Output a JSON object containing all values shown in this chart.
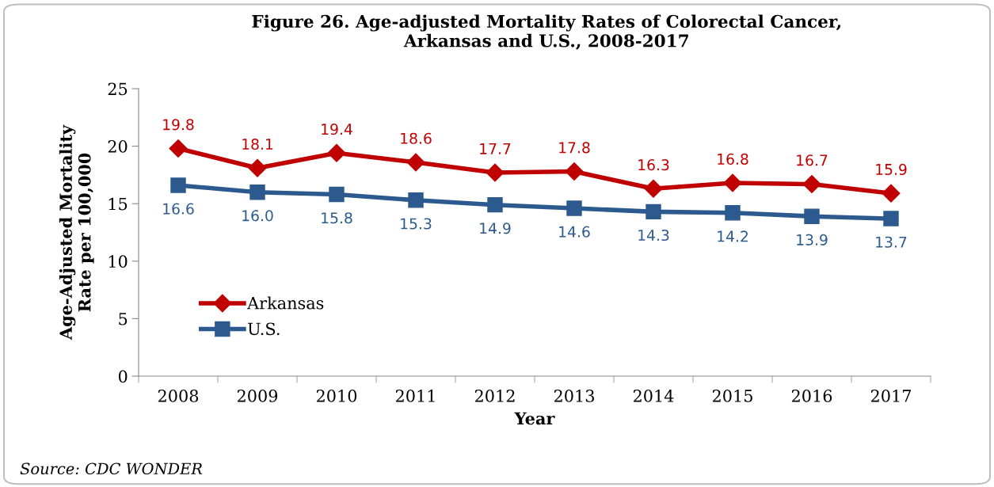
{
  "chart_data": {
    "type": "line",
    "title": "Figure 26. Age-adjusted Mortality Rates of Colorectal Cancer,\nArkansas and U.S., 2008-2017",
    "xlabel": "Year",
    "ylabel": "Age-Adjusted Mortality\nRate per 100,000",
    "categories": [
      "2008",
      "2009",
      "2010",
      "2011",
      "2012",
      "2013",
      "2014",
      "2015",
      "2016",
      "2017"
    ],
    "series": [
      {
        "name": "Arkansas",
        "color": "#c00000",
        "marker": "diamond",
        "values": [
          19.8,
          18.1,
          19.4,
          18.6,
          17.7,
          17.8,
          16.3,
          16.8,
          16.7,
          15.9
        ],
        "value_labels": [
          "19.8",
          "18.1",
          "19.4",
          "18.6",
          "17.7",
          "17.8",
          "16.3",
          "16.8",
          "16.7",
          "15.9"
        ]
      },
      {
        "name": "U.S.",
        "color": "#2c5a8e",
        "marker": "square",
        "values": [
          16.6,
          16.0,
          15.8,
          15.3,
          14.9,
          14.6,
          14.3,
          14.2,
          13.9,
          13.7
        ],
        "value_labels": [
          "16.6",
          "16.0",
          "15.8",
          "15.3",
          "14.9",
          "14.6",
          "14.3",
          "14.2",
          "13.9",
          "13.7"
        ]
      }
    ],
    "ylim": [
      0,
      25
    ],
    "yticks": [
      0,
      5,
      10,
      15,
      20,
      25
    ],
    "grid": false,
    "legend": "bottom left",
    "annotations": [
      "Source: CDC WONDER"
    ]
  }
}
